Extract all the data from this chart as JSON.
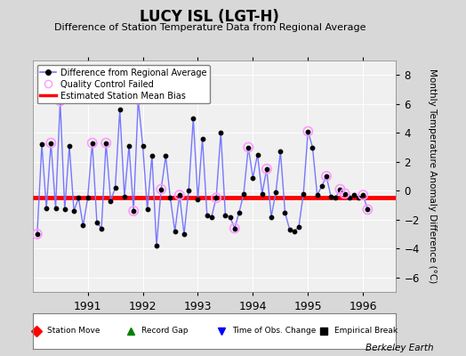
{
  "title": "LUCY ISL (LGT-H)",
  "subtitle": "Difference of Station Temperature Data from Regional Average",
  "ylabel": "Monthly Temperature Anomaly Difference (°C)",
  "credit": "Berkeley Earth",
  "bias": -0.5,
  "ylim": [
    -7,
    9
  ],
  "yticks": [
    -6,
    -4,
    -2,
    0,
    2,
    4,
    6,
    8
  ],
  "bg_color": "#d8d8d8",
  "plot_bg_color": "#f0f0f0",
  "line_color": "#7777ff",
  "marker_color": "#000000",
  "qc_color": "#ff99ff",
  "bias_color": "#ff0000",
  "times": [
    1990.083,
    1990.167,
    1990.25,
    1990.333,
    1990.417,
    1990.5,
    1990.583,
    1990.667,
    1990.75,
    1990.833,
    1990.917,
    1991.0,
    1991.083,
    1991.167,
    1991.25,
    1991.333,
    1991.417,
    1991.5,
    1991.583,
    1991.667,
    1991.75,
    1991.833,
    1991.917,
    1992.0,
    1992.083,
    1992.167,
    1992.25,
    1992.333,
    1992.417,
    1992.5,
    1992.583,
    1992.667,
    1992.75,
    1992.833,
    1992.917,
    1993.0,
    1993.083,
    1993.167,
    1993.25,
    1993.333,
    1993.417,
    1993.5,
    1993.583,
    1993.667,
    1993.75,
    1993.833,
    1993.917,
    1994.0,
    1994.083,
    1994.167,
    1994.25,
    1994.333,
    1994.417,
    1994.5,
    1994.583,
    1994.667,
    1994.75,
    1994.833,
    1994.917,
    1995.0,
    1995.083,
    1995.167,
    1995.25,
    1995.333,
    1995.417,
    1995.5,
    1995.583,
    1995.667,
    1995.75,
    1995.833,
    1995.917,
    1996.0,
    1996.083
  ],
  "values": [
    -3.0,
    3.2,
    -1.2,
    3.3,
    -1.2,
    6.2,
    -1.3,
    3.1,
    -1.4,
    -0.5,
    -2.4,
    -0.5,
    3.3,
    -2.2,
    -2.6,
    3.3,
    -0.7,
    0.2,
    5.6,
    -0.4,
    3.1,
    -1.4,
    6.3,
    3.1,
    -1.3,
    2.4,
    -3.8,
    0.1,
    2.4,
    -0.5,
    -2.8,
    -0.3,
    -3.0,
    0.0,
    5.0,
    -0.6,
    3.6,
    -1.7,
    -1.8,
    -0.5,
    4.0,
    -1.7,
    -1.8,
    -2.6,
    -1.5,
    -0.2,
    3.0,
    0.9,
    2.5,
    -0.2,
    1.5,
    -1.8,
    -0.1,
    2.7,
    -1.5,
    -2.7,
    -2.8,
    -2.5,
    -0.2,
    4.1,
    3.0,
    -0.3,
    0.3,
    1.0,
    -0.4,
    -0.5,
    0.1,
    -0.2,
    -0.5,
    -0.3,
    -0.5,
    -0.3,
    -1.3
  ],
  "qc_failed_indices": [
    0,
    3,
    5,
    12,
    15,
    21,
    22,
    27,
    31,
    39,
    43,
    46,
    50,
    59,
    63,
    66,
    67,
    71,
    72
  ],
  "xmin": 1990.0,
  "xmax": 1996.6,
  "xticks": [
    1991,
    1992,
    1993,
    1994,
    1995,
    1996
  ],
  "xticklabels": [
    "1991",
    "1992",
    "1993",
    "1994",
    "1995",
    "1996"
  ]
}
